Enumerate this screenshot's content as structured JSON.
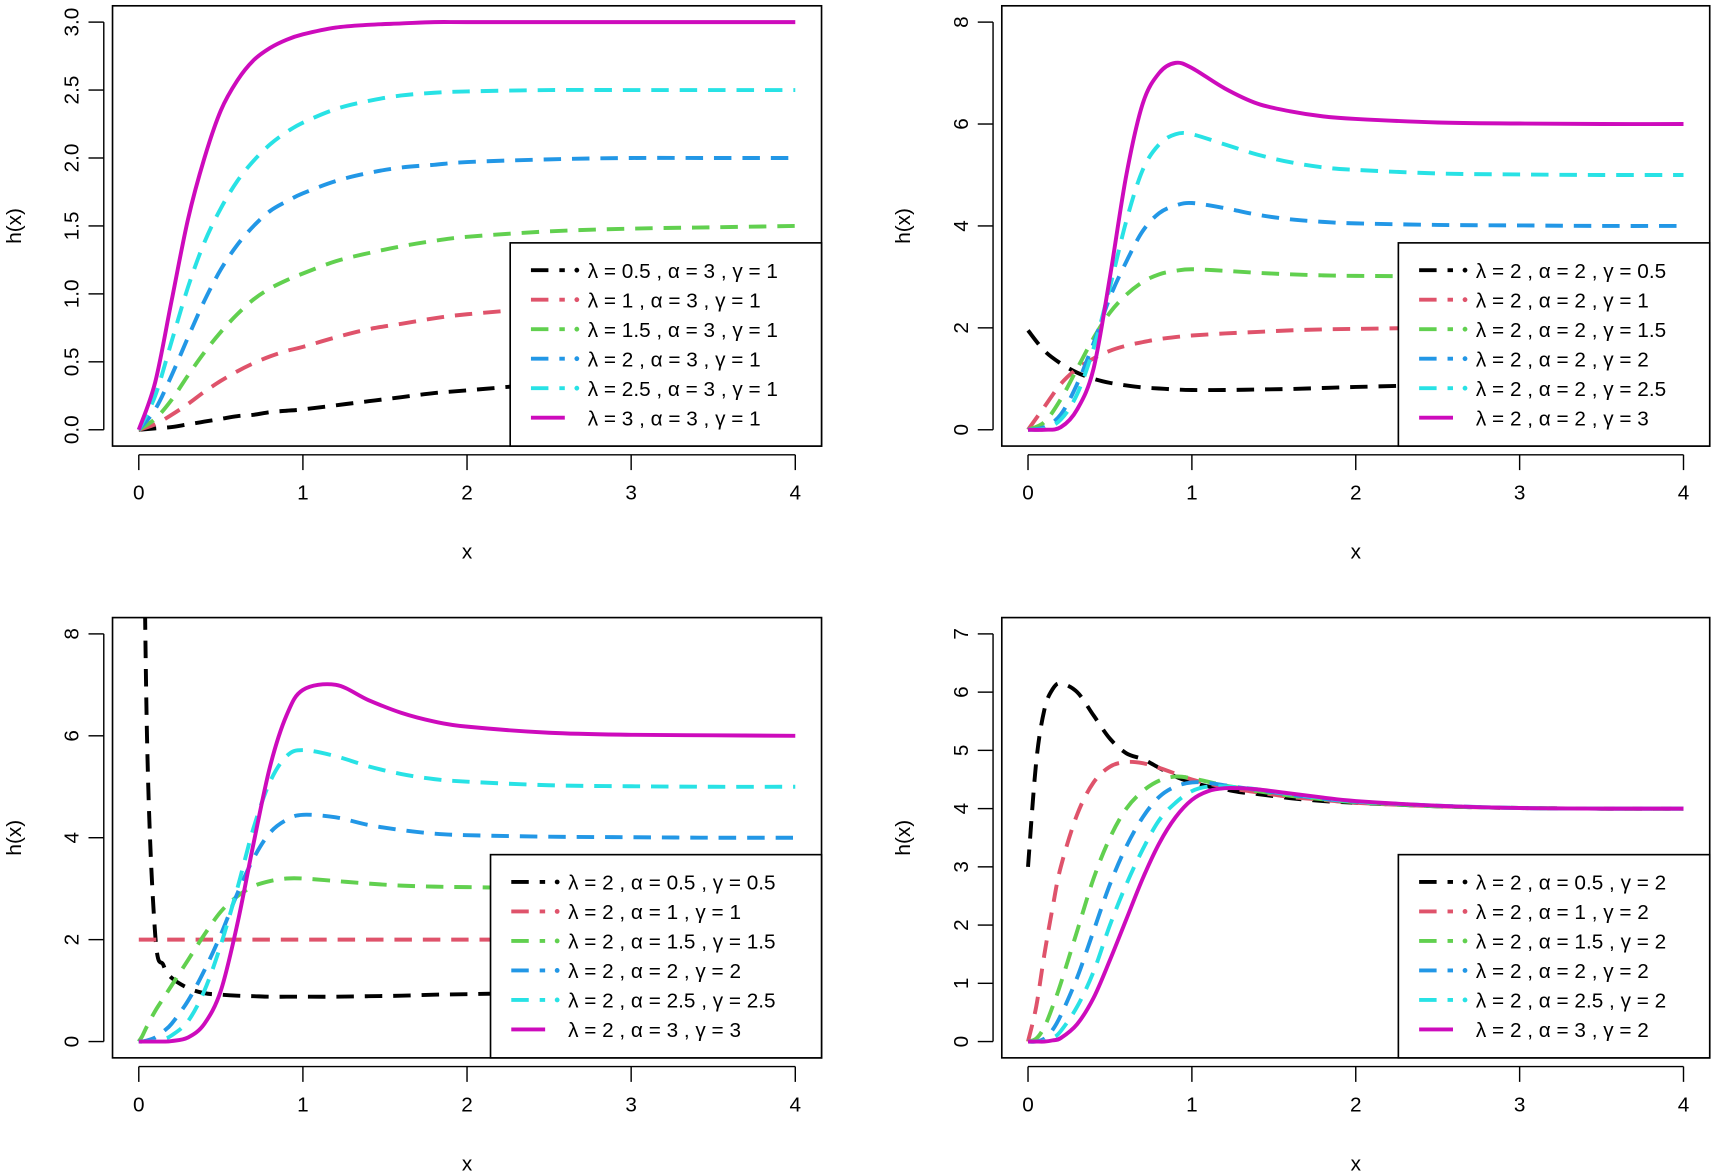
{
  "colors": {
    "black": "#000000",
    "red": "#DF536B",
    "green": "#61D04F",
    "blue": "#2297E6",
    "cyan": "#28E2E5",
    "magenta": "#CD0BBC"
  },
  "chart_data": [
    {
      "type": "line",
      "xlabel": "x",
      "ylabel": "h(x)",
      "xlim": [
        0,
        4
      ],
      "ylim": [
        0,
        3
      ],
      "xticks": [
        "0",
        "1",
        "2",
        "3",
        "4"
      ],
      "yticks": [
        "0.0",
        "0.5",
        "1.0",
        "1.5",
        "2.0",
        "2.5",
        "3.0"
      ],
      "ytick_values": [
        0,
        0.5,
        1,
        1.5,
        2,
        2.5,
        3
      ],
      "legend_position": "bottom-right",
      "x": [
        0,
        0.1,
        0.2,
        0.3,
        0.4,
        0.5,
        0.6,
        0.7,
        0.8,
        0.9,
        1,
        1.2,
        1.4,
        1.6,
        1.8,
        2,
        2.5,
        3,
        3.5,
        4
      ],
      "series": [
        {
          "name": "λ = 0.5 , α = 3 , γ = 1",
          "color": "black",
          "style": "dashed",
          "values": [
            0,
            0.01,
            0.02,
            0.04,
            0.06,
            0.08,
            0.1,
            0.11,
            0.13,
            0.14,
            0.15,
            0.18,
            0.21,
            0.24,
            0.27,
            0.29,
            0.34,
            0.38,
            0.41,
            0.43
          ]
        },
        {
          "name": "λ = 1 , α = 3 , γ = 1",
          "color": "red",
          "style": "dashed",
          "values": [
            0,
            0.04,
            0.11,
            0.19,
            0.28,
            0.36,
            0.43,
            0.49,
            0.54,
            0.58,
            0.61,
            0.68,
            0.74,
            0.78,
            0.82,
            0.85,
            0.9,
            0.94,
            0.96,
            0.97
          ]
        },
        {
          "name": "λ = 1.5 , α = 3 , γ = 1",
          "color": "green",
          "style": "dashed",
          "values": [
            0,
            0.08,
            0.22,
            0.4,
            0.57,
            0.72,
            0.85,
            0.96,
            1.04,
            1.1,
            1.15,
            1.24,
            1.3,
            1.35,
            1.39,
            1.42,
            1.46,
            1.48,
            1.49,
            1.5
          ]
        },
        {
          "name": "λ = 2 , α = 3 , γ = 1",
          "color": "blue",
          "style": "dashed",
          "values": [
            0,
            0.15,
            0.4,
            0.68,
            0.95,
            1.18,
            1.36,
            1.5,
            1.61,
            1.68,
            1.74,
            1.83,
            1.89,
            1.93,
            1.95,
            1.97,
            1.99,
            2,
            2,
            2
          ]
        },
        {
          "name": "λ = 2.5 , α = 3 , γ = 1",
          "color": "cyan",
          "style": "dashed",
          "values": [
            0,
            0.25,
            0.65,
            1.05,
            1.38,
            1.63,
            1.83,
            1.98,
            2.1,
            2.19,
            2.26,
            2.36,
            2.42,
            2.46,
            2.48,
            2.49,
            2.5,
            2.5,
            2.5,
            2.5
          ]
        },
        {
          "name": "λ = 3 , α = 3 , γ = 1",
          "color": "magenta",
          "style": "solid",
          "values": [
            0,
            0.35,
            0.95,
            1.55,
            2.0,
            2.35,
            2.57,
            2.72,
            2.81,
            2.87,
            2.91,
            2.96,
            2.98,
            2.99,
            3,
            3,
            3,
            3,
            3,
            3
          ]
        }
      ]
    },
    {
      "type": "line",
      "xlabel": "x",
      "ylabel": "h(x)",
      "xlim": [
        0,
        4
      ],
      "ylim": [
        0,
        8
      ],
      "xticks": [
        "0",
        "1",
        "2",
        "3",
        "4"
      ],
      "yticks": [
        "0",
        "2",
        "4",
        "6",
        "8"
      ],
      "ytick_values": [
        0,
        2,
        4,
        6,
        8
      ],
      "legend_position": "bottom-right",
      "x": [
        0,
        0.1,
        0.2,
        0.3,
        0.4,
        0.5,
        0.6,
        0.7,
        0.8,
        0.9,
        1,
        1.2,
        1.4,
        1.6,
        1.8,
        2,
        2.5,
        3,
        3.5,
        4
      ],
      "series": [
        {
          "name": "λ = 2 , α = 2 , γ = 0.5",
          "color": "black",
          "style": "dashed",
          "values": [
            1.95,
            1.55,
            1.3,
            1.12,
            1.0,
            0.92,
            0.87,
            0.83,
            0.81,
            0.79,
            0.78,
            0.78,
            0.79,
            0.8,
            0.82,
            0.84,
            0.88,
            0.92,
            0.95,
            0.97
          ]
        },
        {
          "name": "λ = 2 , α = 2 , γ = 1",
          "color": "red",
          "style": "dashed",
          "values": [
            0,
            0.45,
            0.9,
            1.2,
            1.4,
            1.55,
            1.65,
            1.72,
            1.78,
            1.82,
            1.85,
            1.89,
            1.92,
            1.95,
            1.97,
            1.98,
            2,
            2,
            2,
            2
          ]
        },
        {
          "name": "λ = 2 , α = 2 , γ = 1.5",
          "color": "green",
          "style": "dashed",
          "values": [
            0,
            0.15,
            0.6,
            1.2,
            1.8,
            2.3,
            2.65,
            2.9,
            3.05,
            3.12,
            3.15,
            3.12,
            3.08,
            3.05,
            3.03,
            3.02,
            3.01,
            3,
            3,
            3
          ]
        },
        {
          "name": "λ = 2 , α = 2 , γ = 2",
          "color": "blue",
          "style": "dashed",
          "values": [
            0,
            0.05,
            0.3,
            0.9,
            1.7,
            2.6,
            3.3,
            3.9,
            4.25,
            4.4,
            4.45,
            4.35,
            4.22,
            4.13,
            4.08,
            4.05,
            4.02,
            4.01,
            4,
            4
          ]
        },
        {
          "name": "λ = 2 , α = 2 , γ = 2.5",
          "color": "cyan",
          "style": "dashed",
          "values": [
            0,
            0.02,
            0.2,
            0.7,
            1.6,
            2.8,
            4.1,
            5.1,
            5.6,
            5.8,
            5.8,
            5.6,
            5.4,
            5.25,
            5.15,
            5.1,
            5.03,
            5.01,
            5,
            5
          ]
        },
        {
          "name": "λ = 2 , α = 2 , γ = 3",
          "color": "magenta",
          "style": "solid",
          "values": [
            0,
            0,
            0.05,
            0.4,
            1.2,
            3.0,
            5.0,
            6.4,
            7.0,
            7.2,
            7.1,
            6.7,
            6.4,
            6.25,
            6.15,
            6.1,
            6.03,
            6.01,
            6,
            6
          ]
        }
      ]
    },
    {
      "type": "line",
      "xlabel": "x",
      "ylabel": "h(x)",
      "xlim": [
        0,
        4
      ],
      "ylim": [
        0,
        8
      ],
      "xticks": [
        "0",
        "1",
        "2",
        "3",
        "4"
      ],
      "yticks": [
        "0",
        "2",
        "4",
        "6",
        "8"
      ],
      "ytick_values": [
        0,
        2,
        4,
        6,
        8
      ],
      "legend_position": "bottom-right",
      "x": [
        0,
        0.02,
        0.05,
        0.1,
        0.15,
        0.2,
        0.3,
        0.4,
        0.5,
        0.6,
        0.7,
        0.8,
        0.9,
        1,
        1.2,
        1.4,
        1.6,
        1.8,
        2,
        2.5,
        3,
        3.5,
        4
      ],
      "series": [
        {
          "name": "λ = 2 , α = 0.5 , γ = 0.5",
          "color": "black",
          "style": "dashed",
          "values": [
            null,
            14,
            6,
            2.1,
            1.5,
            1.25,
            1.05,
            0.95,
            0.92,
            0.9,
            0.89,
            0.88,
            0.88,
            0.88,
            0.88,
            0.89,
            0.9,
            0.92,
            0.93,
            0.96,
            0.98,
            0.99,
            1.0
          ]
        },
        {
          "name": "λ = 2 , α = 1 , γ = 1",
          "color": "red",
          "style": "dashed",
          "values": [
            2,
            2,
            2,
            2,
            2,
            2,
            2,
            2,
            2,
            2,
            2,
            2,
            2,
            2,
            2,
            2,
            2,
            2,
            2,
            2,
            2,
            2,
            2
          ]
        },
        {
          "name": "λ = 2 , α = 1.5 , γ = 1.5",
          "color": "green",
          "style": "dashed",
          "values": [
            0,
            0.1,
            0.3,
            0.6,
            0.85,
            1.1,
            1.6,
            2.1,
            2.55,
            2.85,
            3.05,
            3.15,
            3.2,
            3.2,
            3.15,
            3.1,
            3.06,
            3.04,
            3.03,
            3.01,
            3,
            3,
            3
          ]
        },
        {
          "name": "λ = 2 , α = 2 , γ = 2",
          "color": "blue",
          "style": "dashed",
          "values": [
            0,
            0,
            0.02,
            0.08,
            0.2,
            0.35,
            0.8,
            1.4,
            2.1,
            2.9,
            3.6,
            4.1,
            4.35,
            4.45,
            4.4,
            4.25,
            4.15,
            4.08,
            4.05,
            4.02,
            4.01,
            4,
            4
          ]
        },
        {
          "name": "λ = 2 , α = 2.5 , γ = 2.5",
          "color": "cyan",
          "style": "dashed",
          "values": [
            0,
            0,
            0,
            0.01,
            0.05,
            0.12,
            0.4,
            1.0,
            1.9,
            3.0,
            4.2,
            5.1,
            5.6,
            5.72,
            5.6,
            5.4,
            5.25,
            5.15,
            5.1,
            5.03,
            5.01,
            5,
            5
          ]
        },
        {
          "name": "λ = 2 , α = 3 , γ = 3",
          "color": "magenta",
          "style": "solid",
          "values": [
            0,
            0,
            0,
            0,
            0,
            0.01,
            0.08,
            0.35,
            1.0,
            2.3,
            3.9,
            5.4,
            6.4,
            6.9,
            7.0,
            6.7,
            6.45,
            6.28,
            6.18,
            6.06,
            6.02,
            6.01,
            6
          ]
        }
      ]
    },
    {
      "type": "line",
      "xlabel": "x",
      "ylabel": "h(x)",
      "xlim": [
        0,
        4
      ],
      "ylim": [
        0,
        7
      ],
      "xticks": [
        "0",
        "1",
        "2",
        "3",
        "4"
      ],
      "yticks": [
        "0",
        "1",
        "2",
        "3",
        "4",
        "5",
        "6",
        "7"
      ],
      "ytick_values": [
        0,
        1,
        2,
        3,
        4,
        5,
        6,
        7
      ],
      "legend_position": "bottom-right",
      "x": [
        0,
        0.05,
        0.1,
        0.15,
        0.2,
        0.3,
        0.4,
        0.5,
        0.6,
        0.7,
        0.8,
        0.9,
        1,
        1.1,
        1.2,
        1.3,
        1.4,
        1.6,
        1.8,
        2,
        2.5,
        3,
        3.5,
        4
      ],
      "series": [
        {
          "name": "λ = 2 , α = 0.5 , γ = 2",
          "color": "black",
          "style": "dashed",
          "values": [
            3,
            4.8,
            5.7,
            6.05,
            6.15,
            6.0,
            5.6,
            5.2,
            4.95,
            4.85,
            4.7,
            4.55,
            4.45,
            4.38,
            4.33,
            4.28,
            4.25,
            4.18,
            4.13,
            4.1,
            4.04,
            4.01,
            4,
            4
          ]
        },
        {
          "name": "λ = 2 , α = 1 , γ = 2",
          "color": "red",
          "style": "dashed",
          "values": [
            0,
            0.6,
            1.5,
            2.3,
            3.0,
            3.9,
            4.45,
            4.72,
            4.8,
            4.78,
            4.7,
            4.6,
            4.5,
            4.43,
            4.37,
            4.32,
            4.28,
            4.2,
            4.15,
            4.1,
            4.04,
            4.01,
            4,
            4
          ]
        },
        {
          "name": "λ = 2 , α = 1.5 , γ = 2",
          "color": "green",
          "style": "dashed",
          "values": [
            0,
            0.05,
            0.25,
            0.6,
            1.0,
            1.9,
            2.8,
            3.5,
            4.0,
            4.3,
            4.48,
            4.55,
            4.52,
            4.46,
            4.4,
            4.35,
            4.3,
            4.22,
            4.16,
            4.11,
            4.04,
            4.01,
            4,
            4
          ]
        },
        {
          "name": "λ = 2 , α = 2 , γ = 2",
          "color": "blue",
          "style": "dashed",
          "values": [
            0,
            0,
            0.05,
            0.2,
            0.45,
            1.1,
            1.9,
            2.7,
            3.35,
            3.85,
            4.2,
            4.38,
            4.45,
            4.44,
            4.4,
            4.36,
            4.32,
            4.24,
            4.17,
            4.12,
            4.05,
            4.01,
            4,
            4
          ]
        },
        {
          "name": "λ = 2 , α = 2.5 , γ = 2",
          "color": "cyan",
          "style": "dashed",
          "values": [
            0,
            0,
            0.01,
            0.06,
            0.18,
            0.6,
            1.2,
            2.0,
            2.7,
            3.3,
            3.8,
            4.1,
            4.3,
            4.38,
            4.38,
            4.36,
            4.33,
            4.25,
            4.18,
            4.12,
            4.05,
            4.01,
            4,
            4
          ]
        },
        {
          "name": "λ = 2 , α = 3 , γ = 2",
          "color": "magenta",
          "style": "solid",
          "values": [
            0,
            0,
            0,
            0.02,
            0.06,
            0.3,
            0.75,
            1.4,
            2.1,
            2.8,
            3.4,
            3.85,
            4.15,
            4.3,
            4.35,
            4.35,
            4.33,
            4.26,
            4.19,
            4.13,
            4.05,
            4.01,
            4,
            4
          ]
        }
      ]
    }
  ]
}
